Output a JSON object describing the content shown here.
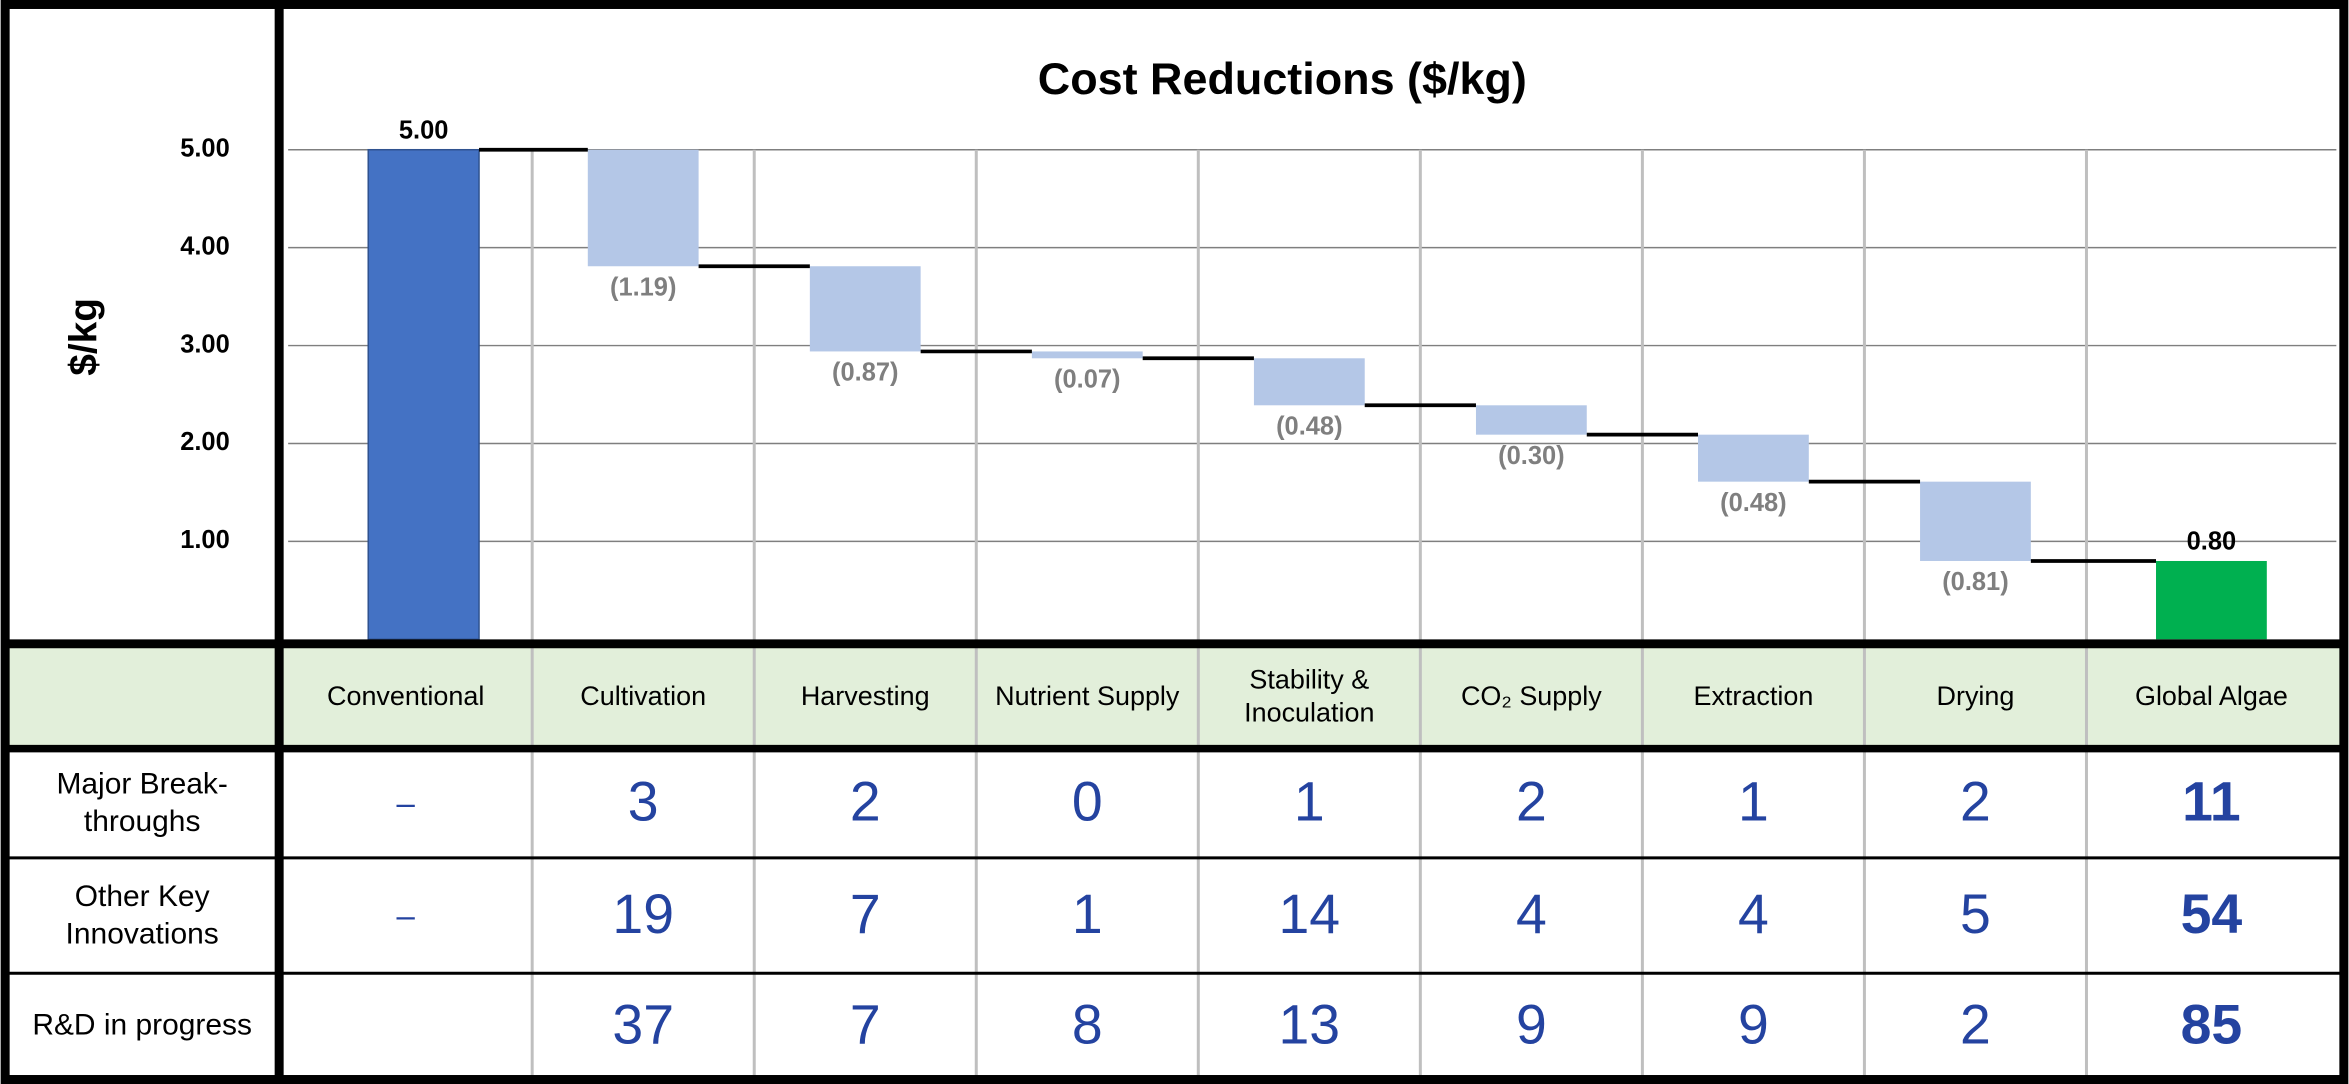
{
  "chart_data": {
    "type": "waterfall",
    "title": "Cost Reductions ($/kg)",
    "y_label": "$/kg",
    "categories": [
      "Conventional",
      "Cultivation",
      "Harvesting",
      "Nutrient Supply",
      "Stability & Inoculation",
      "CO₂ Supply",
      "Extraction",
      "Drying",
      "Global Algae"
    ],
    "values": [
      5.0,
      -1.19,
      -0.87,
      -0.07,
      -0.48,
      -0.3,
      -0.48,
      -0.81,
      0.8
    ],
    "value_labels": [
      "5.00",
      "(1.19)",
      "(0.87)",
      "(0.07)",
      "(0.48)",
      "(0.30)",
      "(0.48)",
      "(0.81)",
      "0.80"
    ],
    "measure": [
      "absolute",
      "relative",
      "relative",
      "relative",
      "relative",
      "relative",
      "relative",
      "relative",
      "total"
    ],
    "colors": [
      "#4472c4",
      "#b4c7e7",
      "#b4c7e7",
      "#b4c7e7",
      "#b4c7e7",
      "#b4c7e7",
      "#b4c7e7",
      "#b4c7e7",
      "#00b050"
    ],
    "ylim": [
      0,
      5
    ],
    "yticks": [
      {
        "value": 1,
        "label": "1.00"
      },
      {
        "value": 2,
        "label": "2.00"
      },
      {
        "value": 3,
        "label": "3.00"
      },
      {
        "value": 4,
        "label": "4.00"
      },
      {
        "value": 5,
        "label": "5.00"
      }
    ],
    "grid": true
  },
  "table": {
    "rows": [
      {
        "label": "Major Break-throughs",
        "cells": [
          "–",
          "3",
          "2",
          "0",
          "1",
          "2",
          "1",
          "2",
          "11"
        ]
      },
      {
        "label": "Other Key Innovations",
        "cells": [
          "–",
          "19",
          "7",
          "1",
          "14",
          "4",
          "4",
          "5",
          "54"
        ]
      },
      {
        "label": "R&D in progress",
        "cells": [
          null,
          "37",
          "7",
          "8",
          "13",
          "9",
          "9",
          "2",
          "85"
        ]
      }
    ]
  }
}
